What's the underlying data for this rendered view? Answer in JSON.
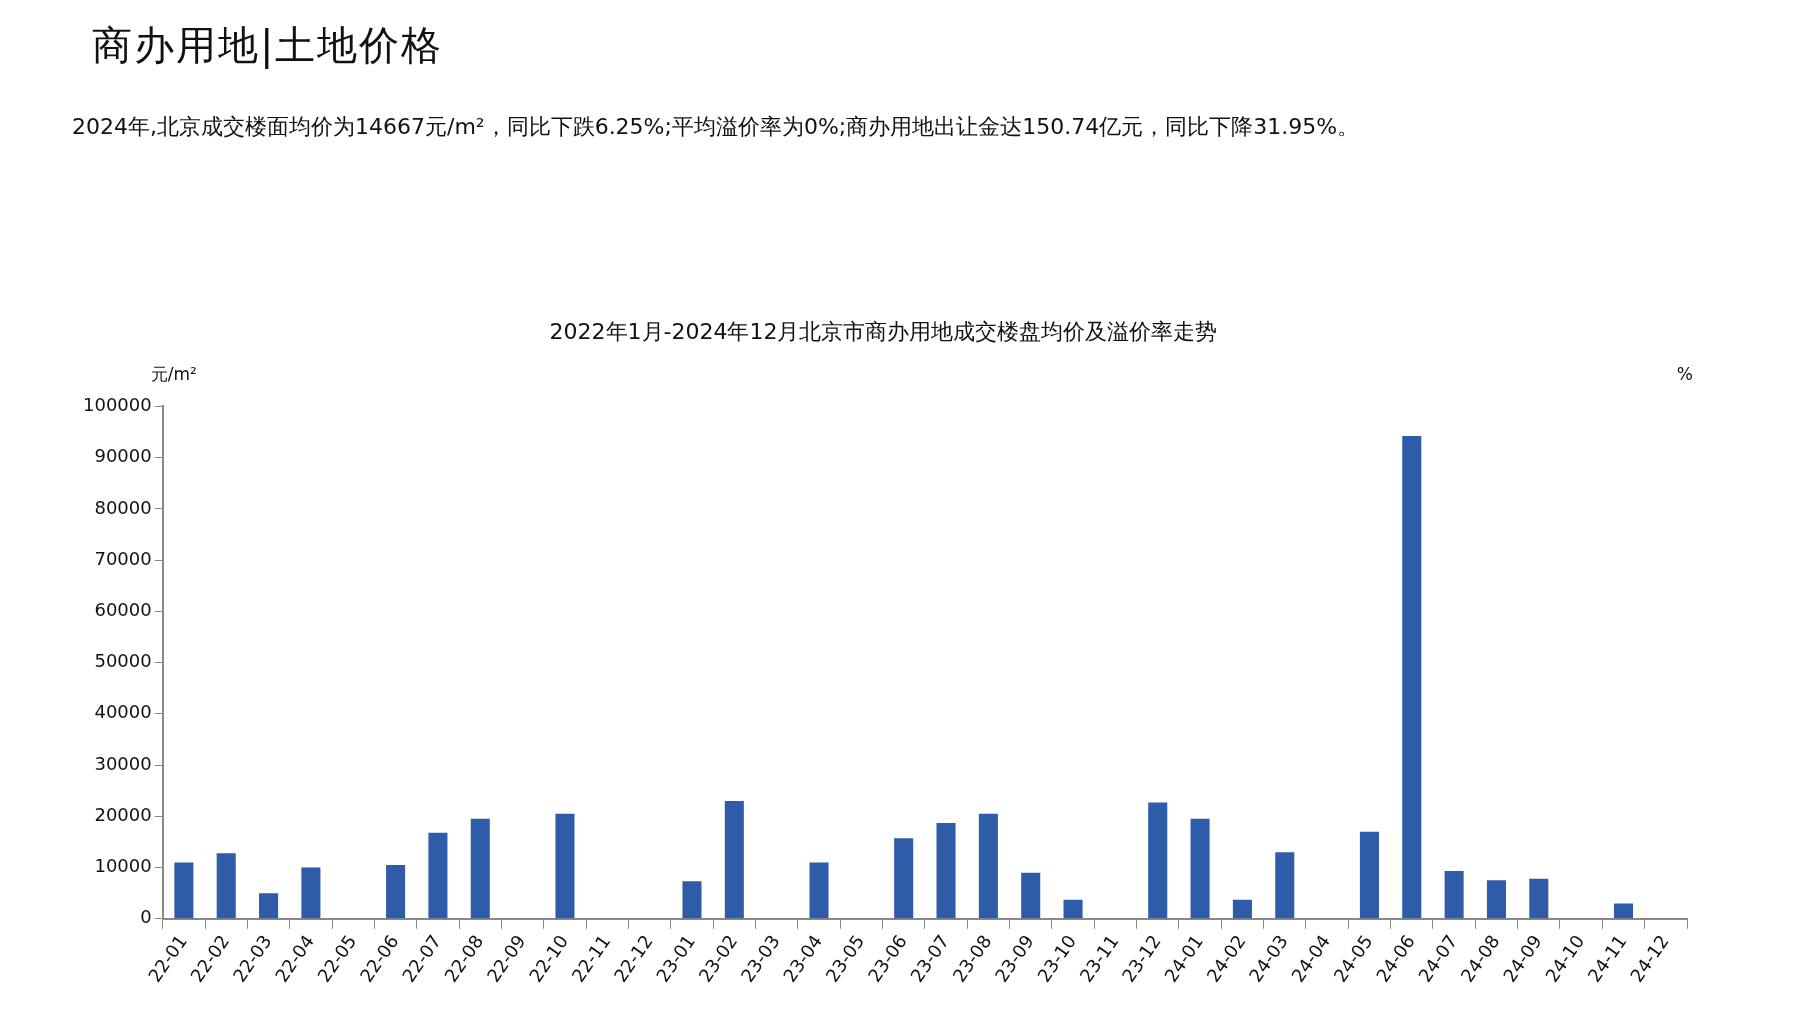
{
  "chart_data": {
    "type": "bar",
    "title": "2022年1月-2024年12月北京市商办用地成交楼盘均价及溢价率走势",
    "annotations": [
      "商办用地|土地价格",
      "2024年,北京成交楼面均价为14667元/m²，同比下跌6.25%;平均溢价率为0%;商办用地出让金达150.74亿元，同比下降31.95%。"
    ],
    "ylabel": "元/m²",
    "y2label": "%",
    "categories": [
      "22-01",
      "22-02",
      "22-03",
      "22-04",
      "22-05",
      "22-06",
      "22-07",
      "22-08",
      "22-09",
      "22-10",
      "22-11",
      "22-12",
      "23-01",
      "23-02",
      "23-03",
      "23-04",
      "23-05",
      "23-06",
      "23-07",
      "23-08",
      "23-09",
      "23-10",
      "23-11",
      "23-12",
      "24-01",
      "24-02",
      "24-03",
      "24-04",
      "24-05",
      "24-06",
      "24-07",
      "24-08",
      "24-09",
      "24-10",
      "24-11",
      "24-12"
    ],
    "values": [
      11000,
      12800,
      5000,
      10000,
      null,
      10500,
      16800,
      19500,
      null,
      20500,
      null,
      null,
      7300,
      23000,
      null,
      11000,
      null,
      15700,
      18700,
      20500,
      9000,
      3700,
      null,
      22700,
      19500,
      3700,
      13000,
      null,
      17000,
      94200,
      9300,
      7500,
      7800,
      null,
      3000,
      null
    ],
    "color": "#2e5ca8",
    "ylim": [
      0,
      100000
    ],
    "yticks": [
      0,
      10000,
      20000,
      30000,
      40000,
      50000,
      60000,
      70000,
      80000,
      90000,
      100000
    ],
    "grid": false,
    "legend": false
  }
}
